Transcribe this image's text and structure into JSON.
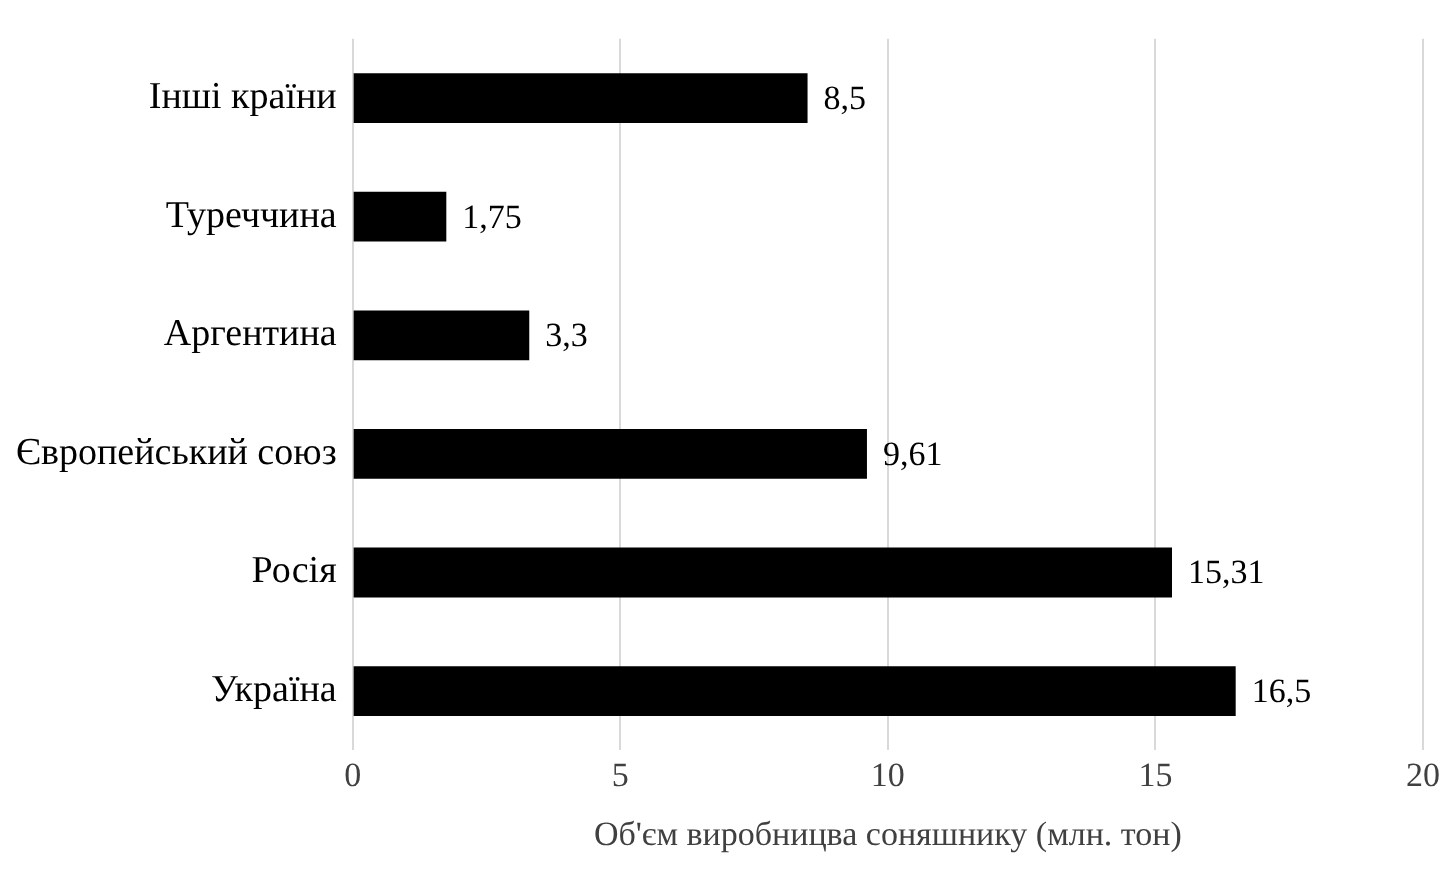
{
  "chart_data": {
    "type": "bar",
    "orientation": "horizontal",
    "xlabel": "Об'єм виробницва соняшнику (млн. тон)",
    "categories": [
      "Інші країни",
      "Туреччина",
      "Аргентина",
      "Європейський союз",
      "Росія",
      "Україна"
    ],
    "values": [
      8.5,
      1.75,
      3.3,
      9.61,
      15.31,
      16.5
    ],
    "value_labels": [
      "8,5",
      "1,75",
      "3,3",
      "9,61",
      "15,31",
      "16,5"
    ],
    "color": "#000000",
    "xlim": [
      0,
      20
    ],
    "xticks": [
      0,
      5,
      10,
      15,
      20
    ],
    "grid": "x",
    "legend": false
  }
}
